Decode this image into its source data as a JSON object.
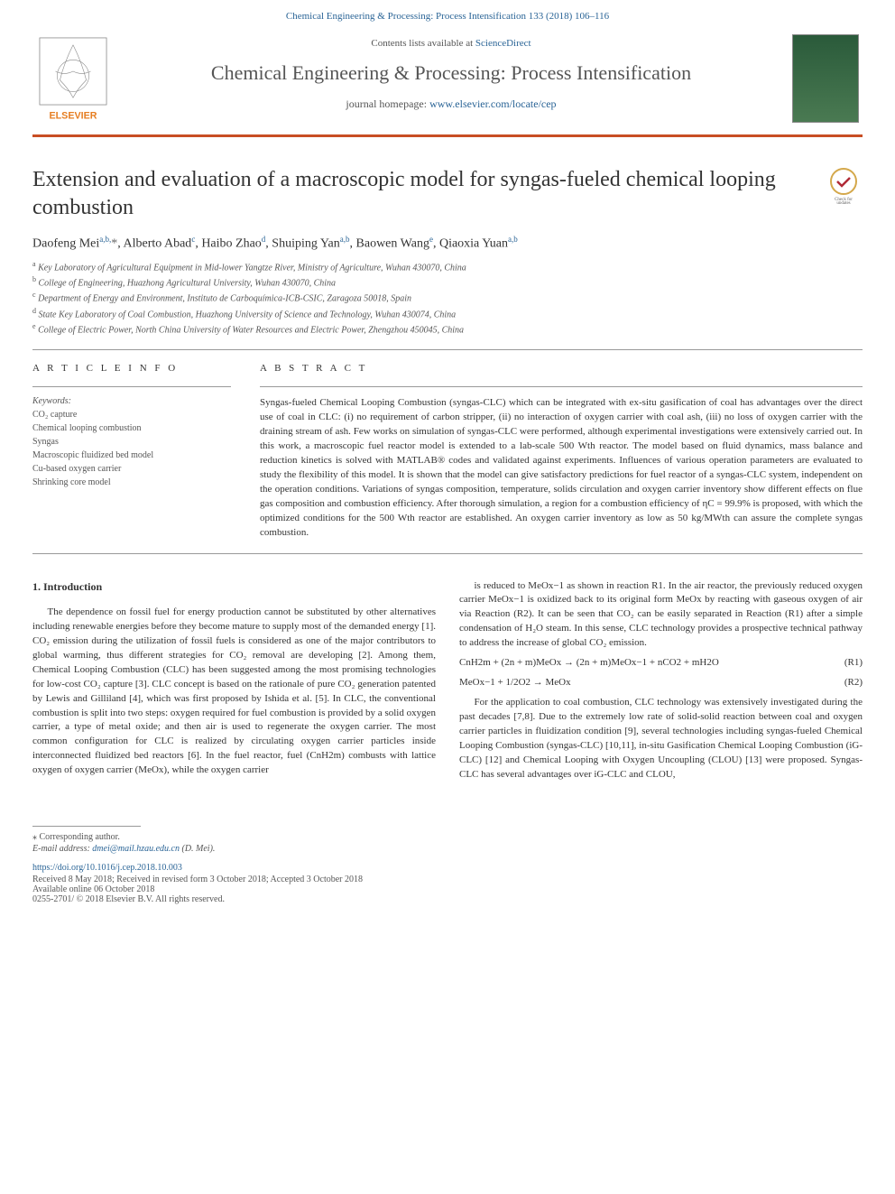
{
  "top_citation": "Chemical Engineering & Processing: Process Intensification 133 (2018) 106–116",
  "header": {
    "contents_prefix": "Contents lists available at ",
    "contents_link": "ScienceDirect",
    "journal_name": "Chemical Engineering & Processing: Process Intensification",
    "homepage_prefix": "journal homepage: ",
    "homepage_url": "www.elsevier.com/locate/cep",
    "elsevier_label": "ELSEVIER"
  },
  "article": {
    "title": "Extension and evaluation of a macroscopic model for syngas-fueled chemical looping combustion",
    "authors_html": "Daofeng Mei<sup>a,b,</sup><span class='corr'>*</span>, Alberto Abad<sup>c</sup>, Haibo Zhao<sup>d</sup>, Shuiping Yan<sup>a,b</sup>, Baowen Wang<sup>e</sup>, Qiaoxia Yuan<sup>a,b</sup>",
    "affiliations": [
      "a Key Laboratory of Agricultural Equipment in Mid-lower Yangtze River, Ministry of Agriculture, Wuhan 430070, China",
      "b College of Engineering, Huazhong Agricultural University, Wuhan 430070, China",
      "c Department of Energy and Environment, Instituto de Carboquímica-ICB-CSIC, Zaragoza 50018, Spain",
      "d State Key Laboratory of Coal Combustion, Huazhong University of Science and Technology, Wuhan 430074, China",
      "e College of Electric Power, North China University of Water Resources and Electric Power, Zhengzhou 450045, China"
    ]
  },
  "info": {
    "heading": "A R T I C L E   I N F O",
    "keywords_label": "Keywords:",
    "keywords": [
      "CO₂ capture",
      "Chemical looping combustion",
      "Syngas",
      "Macroscopic fluidized bed model",
      "Cu-based oxygen carrier",
      "Shrinking core model"
    ]
  },
  "abstract": {
    "heading": "A B S T R A C T",
    "text": "Syngas-fueled Chemical Looping Combustion (syngas-CLC) which can be integrated with ex-situ gasification of coal has advantages over the direct use of coal in CLC: (i) no requirement of carbon stripper, (ii) no interaction of oxygen carrier with coal ash, (iii) no loss of oxygen carrier with the draining stream of ash. Few works on simulation of syngas-CLC were performed, although experimental investigations were extensively carried out. In this work, a macroscopic fuel reactor model is extended to a lab-scale 500 Wth reactor. The model based on fluid dynamics, mass balance and reduction kinetics is solved with MATLAB® codes and validated against experiments. Influences of various operation parameters are evaluated to study the flexibility of this model. It is shown that the model can give satisfactory predictions for fuel reactor of a syngas-CLC system, independent on the operation conditions. Variations of syngas composition, temperature, solids circulation and oxygen carrier inventory show different effects on flue gas composition and combustion efficiency. After thorough simulation, a region for a combustion efficiency of ηC = 99.9% is proposed, with which the optimized conditions for the 500 Wth reactor are established. An oxygen carrier inventory as low as 50 kg/MWth can assure the complete syngas combustion."
  },
  "body": {
    "section_heading": "1. Introduction",
    "col1_para": "The dependence on fossil fuel for energy production cannot be substituted by other alternatives including renewable energies before they become mature to supply most of the demanded energy [1]. CO₂ emission during the utilization of fossil fuels is considered as one of the major contributors to global warming, thus different strategies for CO₂ removal are developing [2]. Among them, Chemical Looping Combustion (CLC) has been suggested among the most promising technologies for low-cost CO₂ capture [3]. CLC concept is based on the rationale of pure CO₂ generation patented by Lewis and Gilliland [4], which was first proposed by Ishida et al. [5]. In CLC, the conventional combustion is split into two steps: oxygen required for fuel combustion is provided by a solid oxygen carrier, a type of metal oxide; and then air is used to regenerate the oxygen carrier. The most common configuration for CLC is realized by circulating oxygen carrier particles inside interconnected fluidized bed reactors [6]. In the fuel reactor, fuel (CnH2m) combusts with lattice oxygen of oxygen carrier (MeOx), while the oxygen carrier",
    "col2_para1": "is reduced to MeOx−1 as shown in reaction R1. In the air reactor, the previously reduced oxygen carrier MeOx−1 is oxidized back to its original form MeOx by reacting with gaseous oxygen of air via Reaction (R2). It can be seen that CO₂ can be easily separated in Reaction (R1) after a simple condensation of H₂O steam. In this sense, CLC technology provides a prospective technical pathway to address the increase of global CO₂ emission.",
    "eq1": "CnH2m + (2n + m)MeOx → (2n + m)MeOx−1 + nCO2 + mH2O",
    "eq1_label": "(R1)",
    "eq2": "MeOx−1 + 1/2O2 → MeOx",
    "eq2_label": "(R2)",
    "col2_para2": "For the application to coal combustion, CLC technology was extensively investigated during the past decades [7,8]. Due to the extremely low rate of solid-solid reaction between coal and oxygen carrier particles in fluidization condition [9], several technologies including syngas-fueled Chemical Looping Combustion (syngas-CLC) [10,11], in-situ Gasification Chemical Looping Combustion (iG-CLC) [12] and Chemical Looping with Oxygen Uncoupling (CLOU) [13] were proposed. Syngas-CLC has several advantages over iG-CLC and CLOU,"
  },
  "footer": {
    "corr_note": "⁎ Corresponding author.",
    "email_label": "E-mail address: ",
    "email": "dmei@mail.hzau.edu.cn",
    "email_suffix": " (D. Mei).",
    "doi": "https://doi.org/10.1016/j.cep.2018.10.003",
    "dates": "Received 8 May 2018; Received in revised form 3 October 2018; Accepted 3 October 2018",
    "online": "Available online 06 October 2018",
    "copyright": "0255-2701/ © 2018 Elsevier B.V. All rights reserved."
  },
  "colors": {
    "accent": "#c84e24",
    "link": "#2a6496",
    "text": "#333333",
    "muted": "#555555"
  }
}
